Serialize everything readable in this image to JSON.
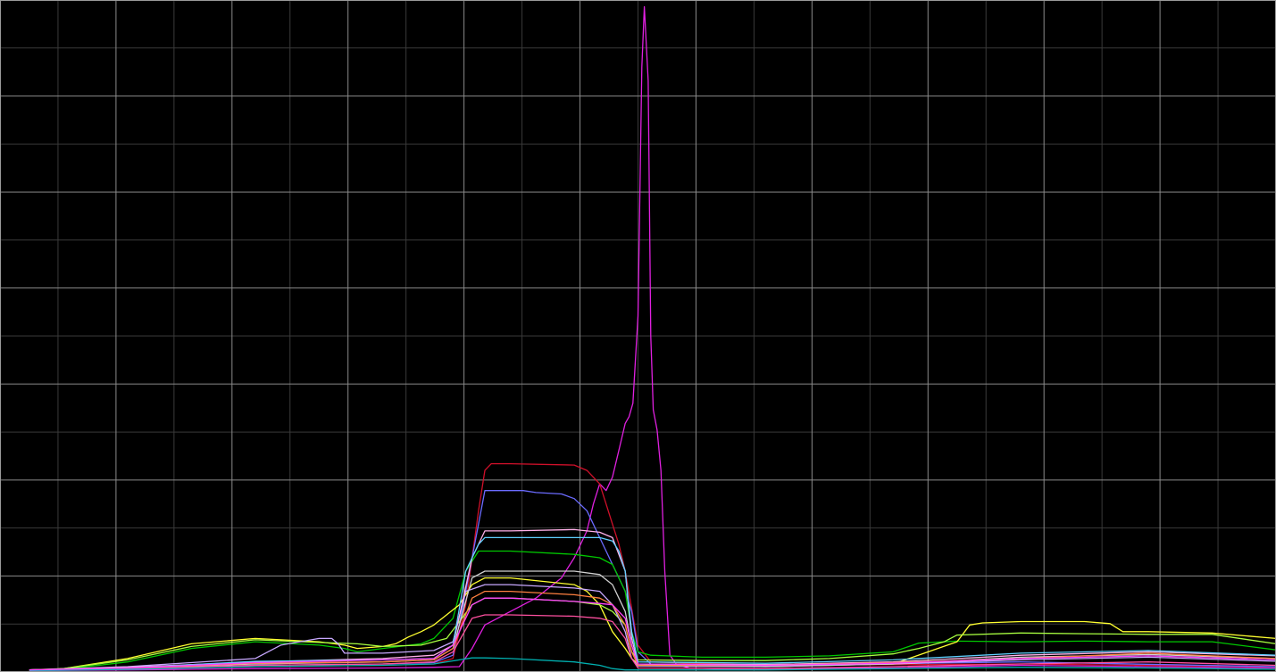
{
  "chart_data": {
    "type": "line",
    "title": "",
    "xlabel": "",
    "ylabel": "",
    "grid": true,
    "legend": "none",
    "xlim": [
      0,
      100
    ],
    "ylim": [
      0,
      100
    ],
    "colors": {
      "background": "#000000",
      "grid_major": "#8a8a8a",
      "grid_minor": "#3a3a3a",
      "border": "#9a9a9a"
    },
    "series": [
      {
        "color": "#e020e0",
        "x": [
          2.3,
          10,
          20,
          30,
          34,
          36,
          37,
          38,
          40,
          42,
          44,
          45,
          46,
          46.5,
          47,
          47.5,
          48,
          48.5,
          49,
          49.3,
          49.6,
          50,
          50.3,
          50.5,
          50.8,
          51,
          51.2,
          51.5,
          51.8,
          52.1,
          52.5,
          53.0,
          54.0,
          56,
          60,
          70,
          80,
          90,
          100
        ],
        "y": [
          0.2,
          0.3,
          0.5,
          0.6,
          0.7,
          0.8,
          3.5,
          7,
          9,
          11,
          14,
          17,
          21,
          25,
          28,
          27,
          29,
          33,
          37,
          38,
          40,
          53,
          90,
          99,
          88,
          50,
          39,
          36,
          30,
          15,
          2.5,
          1.2,
          0.6,
          0.5,
          0.5,
          0.6,
          1.0,
          0.8,
          0.6
        ]
      },
      {
        "color": "#d0102a",
        "x": [
          2.3,
          10,
          20,
          30,
          34,
          35.5,
          36.5,
          37.5,
          38,
          38.5,
          39,
          40,
          45,
          46,
          47,
          47.5,
          48,
          48.5,
          49,
          50,
          51,
          60,
          80,
          100
        ],
        "y": [
          0.3,
          0.5,
          0.8,
          1,
          1.2,
          2,
          10,
          24,
          30,
          31,
          31,
          31,
          30.8,
          30,
          28,
          25,
          22,
          19,
          15,
          4,
          1.5,
          1.0,
          1.2,
          0.8
        ]
      },
      {
        "color": "#6b6bff",
        "x": [
          2.3,
          10,
          20,
          30,
          34,
          35.5,
          36.5,
          37.5,
          38,
          38.5,
          39,
          40,
          41,
          42,
          44,
          45,
          46,
          47,
          48,
          49,
          49.5,
          50,
          51,
          60,
          80,
          100
        ],
        "y": [
          0.3,
          0.5,
          1.0,
          1.2,
          1.4,
          2.5,
          12,
          22,
          27,
          27,
          27,
          27,
          27,
          26.7,
          26.5,
          25.8,
          24,
          20,
          16,
          12,
          9,
          3,
          1.2,
          1.0,
          1.5,
          0.8
        ]
      },
      {
        "color": "#00c800",
        "x": [
          2.3,
          5,
          10,
          15,
          20,
          25,
          27,
          28,
          30,
          33,
          34,
          35.5,
          36.5,
          37.5,
          38,
          40,
          45,
          47,
          48,
          48.5,
          49,
          49.5,
          50,
          51,
          55,
          60,
          65,
          70,
          72,
          75,
          80,
          85,
          90,
          95,
          100
        ],
        "y": [
          0.2,
          0.4,
          1.5,
          3.5,
          4.5,
          4.0,
          3.5,
          3.0,
          3.5,
          4.2,
          5.0,
          8,
          15,
          18,
          18,
          18,
          17.5,
          17,
          16,
          14,
          12,
          6,
          3,
          2.5,
          2.2,
          2.2,
          2.4,
          3.0,
          4.3,
          4.6,
          4.5,
          4.6,
          4.5,
          4.5,
          3.3
        ]
      },
      {
        "color": "#ffff30",
        "x": [
          2.3,
          5,
          10,
          15,
          20,
          25,
          27,
          28,
          30,
          31,
          32,
          33,
          34,
          35,
          36,
          37,
          38,
          40,
          45,
          46,
          47,
          48,
          49,
          49.5,
          50,
          60,
          70,
          75,
          76,
          77,
          80,
          85,
          87,
          88,
          90,
          95,
          100
        ],
        "y": [
          0.2,
          0.5,
          2.0,
          4.2,
          5.0,
          4.5,
          4.0,
          3.5,
          3.8,
          4.2,
          5.2,
          6.0,
          7.0,
          8.5,
          10,
          13,
          14,
          14,
          13,
          12,
          10,
          6,
          3.5,
          2,
          1.2,
          0.8,
          1.2,
          4.5,
          7.0,
          7.3,
          7.5,
          7.5,
          7.2,
          6.0,
          6.0,
          5.8,
          5.0
        ]
      },
      {
        "color": "#a8ff40",
        "x": [
          2.3,
          5,
          10,
          15,
          20,
          25,
          28,
          30,
          33,
          35,
          37,
          38,
          40,
          45,
          47,
          48,
          49,
          49.5,
          50,
          55,
          60,
          65,
          70,
          72,
          74,
          75,
          80,
          85,
          90,
          95,
          100
        ],
        "y": [
          0.3,
          0.5,
          1.8,
          3.8,
          4.8,
          4.4,
          4.2,
          3.8,
          4.0,
          5.0,
          10,
          11,
          11,
          10.5,
          10,
          9,
          7,
          3,
          1.8,
          1.7,
          1.7,
          2.0,
          2.7,
          3.5,
          4.5,
          5.5,
          5.8,
          5.7,
          5.6,
          5.6,
          4.2
        ]
      },
      {
        "color": "#c8a8ff",
        "x": [
          2.3,
          10,
          20,
          22,
          25,
          26,
          26.5,
          27,
          30,
          34,
          35.5,
          36.5,
          38,
          40,
          45,
          47,
          48,
          49,
          49.5,
          50,
          60,
          70,
          80,
          90,
          100
        ],
        "y": [
          0.3,
          0.8,
          2.0,
          4.0,
          5.0,
          5.0,
          4.2,
          2.8,
          2.8,
          3.2,
          4.5,
          12,
          13,
          13,
          12.5,
          12,
          10,
          6,
          2,
          0.9,
          0.8,
          1.2,
          1.8,
          2.2,
          1.6
        ]
      },
      {
        "color": "#ffb0e8",
        "x": [
          2.3,
          10,
          20,
          30,
          34,
          35.5,
          37,
          38,
          40,
          45,
          47,
          48,
          49,
          49.5,
          50,
          60,
          70,
          80,
          90,
          100
        ],
        "y": [
          0.3,
          0.7,
          1.5,
          2.0,
          2.5,
          4,
          17,
          21,
          21,
          21.2,
          20.8,
          20,
          15,
          5,
          1.2,
          1.1,
          1.5,
          2.5,
          3.0,
          2.4
        ]
      },
      {
        "color": "#d0d0d0",
        "x": [
          2.3,
          10,
          20,
          30,
          34,
          35.5,
          37,
          38,
          40,
          45,
          47,
          48,
          49,
          49.5,
          50,
          60,
          70,
          80,
          90,
          100
        ],
        "y": [
          0.3,
          0.6,
          1.2,
          1.5,
          1.8,
          3.5,
          14,
          15,
          15,
          15,
          14.5,
          13,
          9,
          4,
          1.0,
          0.9,
          1.2,
          2.2,
          2.6,
          2.0
        ]
      },
      {
        "color": "#60d0ff",
        "x": [
          2.3,
          10,
          20,
          30,
          34,
          35.5,
          36.5,
          37.5,
          38,
          40,
          45,
          47,
          48,
          48.5,
          49,
          49.5,
          50,
          60,
          70,
          80,
          90,
          100
        ],
        "y": [
          0.3,
          0.6,
          1.6,
          1.8,
          2.0,
          4,
          15,
          19,
          20,
          20,
          20,
          20,
          19.5,
          18,
          15,
          6,
          1.5,
          1.3,
          1.8,
          2.8,
          3.2,
          2.5
        ]
      },
      {
        "color": "#ff8040",
        "x": [
          2.3,
          10,
          20,
          30,
          34,
          35.5,
          37,
          38,
          40,
          45,
          47,
          48,
          49,
          49.5,
          50,
          60,
          70,
          80,
          90,
          100
        ],
        "y": [
          0.3,
          0.6,
          1.3,
          1.5,
          1.8,
          3.5,
          11,
          12,
          12,
          11.5,
          11,
          10,
          7,
          3,
          1.0,
          1.0,
          1.4,
          2.0,
          2.8,
          2.0
        ]
      },
      {
        "color": "#ff50a0",
        "x": [
          2.3,
          10,
          20,
          30,
          34,
          35.5,
          37,
          38,
          40,
          45,
          47,
          48,
          49,
          49.5,
          50,
          60,
          70,
          80,
          90,
          100
        ],
        "y": [
          0.2,
          0.5,
          1.0,
          1.2,
          1.5,
          3,
          8,
          8.5,
          8.5,
          8.3,
          8.0,
          7.5,
          5,
          2,
          0.6,
          0.5,
          0.8,
          1.2,
          1.5,
          1.0
        ]
      },
      {
        "color": "#00b0b0",
        "x": [
          2.3,
          10,
          20,
          30,
          34,
          36,
          37,
          38,
          40,
          45,
          47,
          48,
          49,
          50,
          60,
          70,
          80,
          90,
          100
        ],
        "y": [
          0.2,
          0.4,
          0.8,
          1.0,
          1.2,
          1.8,
          2.1,
          2.1,
          2.0,
          1.5,
          1.0,
          0.5,
          0.3,
          0.3,
          0.3,
          0.5,
          0.7,
          0.6,
          0.4
        ]
      },
      {
        "color": "#ff40ff",
        "x": [
          2.3,
          10,
          20,
          30,
          34,
          35.5,
          37,
          38,
          40,
          45,
          47,
          48,
          49,
          49.5,
          50,
          60,
          70,
          80,
          90,
          100
        ],
        "y": [
          0.3,
          0.6,
          1.4,
          1.8,
          2.0,
          4,
          10,
          11,
          11,
          10.5,
          10.2,
          10,
          8,
          4,
          1.2,
          1.0,
          1.3,
          2.0,
          2.4,
          1.8
        ]
      }
    ]
  }
}
